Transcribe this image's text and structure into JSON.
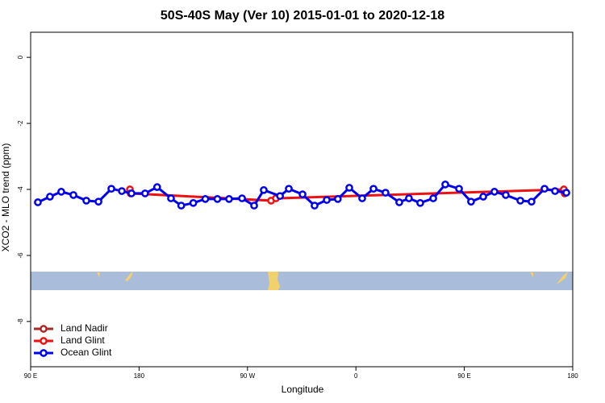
{
  "chart_data": {
    "type": "line",
    "title": "50S-40S May (Ver 10)   2015-01-01 to 2020-12-18",
    "xlabel": "Longitude",
    "ylabel": "XCO2 - MLO trend (ppm)",
    "xlim": [
      90,
      540
    ],
    "ylim": [
      -9.37,
      0.76
    ],
    "xticks": [
      {
        "value": 90,
        "label": "90 E"
      },
      180,
      {
        "value": 270,
        "label": "90 W"
      },
      {
        "value": 360,
        "label": "0"
      },
      {
        "value": 450,
        "label": "90 E"
      },
      {
        "value": 540,
        "label": "180"
      }
    ],
    "yticks": [
      0,
      -2,
      -4,
      -6,
      -8
    ],
    "legend": "bottom-left",
    "series": [
      {
        "name": "Land Nadir",
        "color": "#a52a2a",
        "x": [],
        "values": []
      },
      {
        "name": "Land Glint",
        "color": "#ee1111",
        "x": [
          172.4,
          173,
          289.6,
          293.6,
          532.6,
          533.3
        ],
        "values": [
          -4.0,
          -4.12,
          -4.34,
          -4.27,
          -4.0,
          -4.12
        ]
      },
      {
        "name": "Ocean Glint",
        "color": "#0000ee",
        "x": [
          96,
          106,
          115.4,
          125.5,
          136.2,
          146.3,
          157,
          165.7,
          173.7,
          185,
          195,
          206.5,
          215,
          225,
          235,
          245,
          254.7,
          265.5,
          275.5,
          283.5,
          297,
          304.3,
          315.7,
          325.7,
          335.8,
          345,
          354.5,
          365.2,
          374.6,
          384.6,
          396,
          404,
          413.4,
          424.2,
          434.2,
          445.6,
          455.6,
          465.7,
          475,
          484.4,
          496.5,
          505.8,
          516.6,
          525.3,
          534.7
        ],
        "values": [
          -4.39,
          -4.22,
          -4.07,
          -4.17,
          -4.34,
          -4.37,
          -3.98,
          -4.05,
          -4.12,
          -4.12,
          -3.93,
          -4.27,
          -4.49,
          -4.41,
          -4.29,
          -4.29,
          -4.29,
          -4.27,
          -4.49,
          -4.02,
          -4.2,
          -3.98,
          -4.15,
          -4.49,
          -4.32,
          -4.29,
          -3.95,
          -4.27,
          -3.98,
          -4.1,
          -4.39,
          -4.27,
          -4.41,
          -4.27,
          -3.85,
          -3.98,
          -4.37,
          -4.22,
          -4.07,
          -4.17,
          -4.34,
          -4.37,
          -3.98,
          -4.05,
          -4.1
        ]
      }
    ]
  }
}
